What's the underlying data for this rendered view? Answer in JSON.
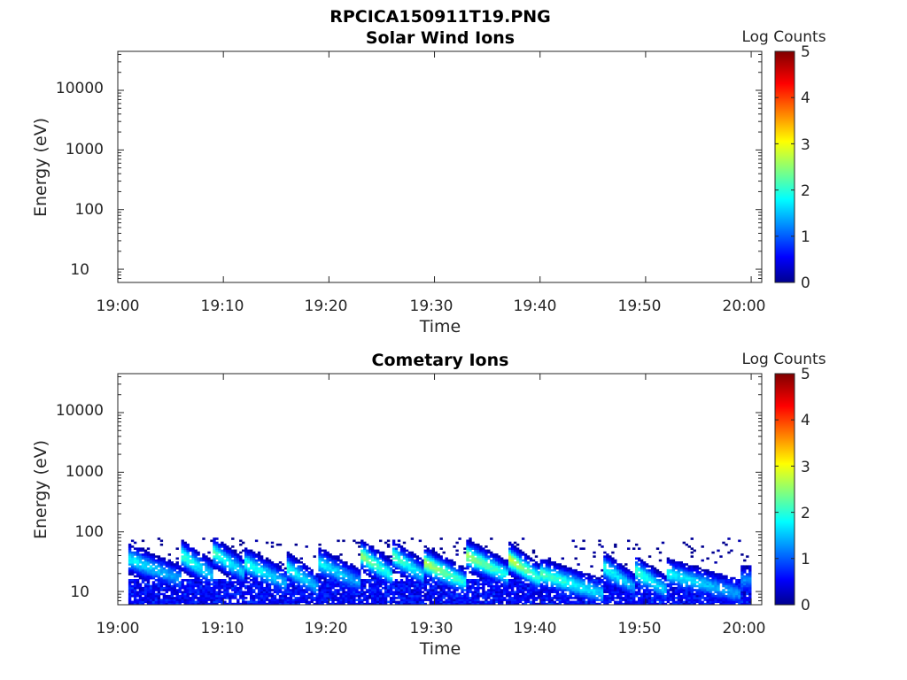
{
  "figure_title": "RPCICA150911T19.PNG",
  "chart_data": [
    {
      "type": "heatmap",
      "title": "Solar Wind Ions",
      "xlabel": "Time",
      "ylabel": "Energy (eV)",
      "x_ticks": [
        "19:00",
        "19:10",
        "19:20",
        "19:30",
        "19:40",
        "19:50",
        "20:00"
      ],
      "xlim": [
        "19:00",
        "20:01"
      ],
      "y_scale": "log",
      "y_ticks": [
        10,
        100,
        1000,
        10000
      ],
      "y_tick_labels": [
        "10",
        "100",
        "1000",
        "10000"
      ],
      "ylim": [
        6,
        45000
      ],
      "grid": false,
      "colorbar": {
        "label": "Log Counts",
        "ticks": [
          "0",
          "1",
          "2",
          "3",
          "4",
          "5"
        ],
        "range": [
          0,
          5
        ],
        "colormap": [
          "#00008f",
          "#0000ff",
          "#00ffff",
          "#ffff00",
          "#ff0000",
          "#800000"
        ]
      },
      "data": []
    },
    {
      "type": "heatmap",
      "title": "Cometary Ions",
      "xlabel": "Time",
      "ylabel": "Energy (eV)",
      "x_ticks": [
        "19:00",
        "19:10",
        "19:20",
        "19:30",
        "19:40",
        "19:50",
        "20:00"
      ],
      "xlim": [
        "19:00",
        "20:01"
      ],
      "y_scale": "log",
      "y_ticks": [
        10,
        100,
        1000,
        10000
      ],
      "y_tick_labels": [
        "10",
        "100",
        "1000",
        "10000"
      ],
      "ylim": [
        6,
        45000
      ],
      "grid": false,
      "colorbar": {
        "label": "Log Counts",
        "ticks": [
          "0",
          "1",
          "2",
          "3",
          "4",
          "5"
        ],
        "range": [
          0,
          5
        ],
        "colormap": [
          "#00008f",
          "#0000ff",
          "#00ffff",
          "#ffff00",
          "#ff0000",
          "#800000"
        ]
      },
      "data_extent": {
        "time_start": "19:01",
        "time_end": "20:00",
        "energy_min_eV": 6,
        "energy_max_eV": 80
      },
      "features": [
        {
          "time": "19:01",
          "peak_energy_eV": 35,
          "peak_log_counts": 1.6
        },
        {
          "time": "19:06",
          "peak_energy_eV": 40,
          "peak_log_counts": 1.9
        },
        {
          "time": "19:09",
          "peak_energy_eV": 45,
          "peak_log_counts": 1.9
        },
        {
          "time": "19:12",
          "peak_energy_eV": 30,
          "peak_log_counts": 1.8
        },
        {
          "time": "19:16",
          "peak_energy_eV": 25,
          "peak_log_counts": 1.7
        },
        {
          "time": "19:19",
          "peak_energy_eV": 30,
          "peak_log_counts": 1.6
        },
        {
          "time": "19:23",
          "peak_energy_eV": 40,
          "peak_log_counts": 2.3
        },
        {
          "time": "19:26",
          "peak_energy_eV": 40,
          "peak_log_counts": 2.0
        },
        {
          "time": "19:29",
          "peak_energy_eV": 30,
          "peak_log_counts": 2.5
        },
        {
          "time": "19:33",
          "peak_energy_eV": 40,
          "peak_log_counts": 2.4
        },
        {
          "time": "19:37",
          "peak_energy_eV": 35,
          "peak_log_counts": 2.6
        },
        {
          "time": "19:40",
          "peak_energy_eV": 20,
          "peak_log_counts": 2.0
        },
        {
          "time": "19:46",
          "peak_energy_eV": 25,
          "peak_log_counts": 1.7
        },
        {
          "time": "19:49",
          "peak_energy_eV": 22,
          "peak_log_counts": 1.9
        },
        {
          "time": "19:52",
          "peak_energy_eV": 20,
          "peak_log_counts": 1.6
        },
        {
          "time": "19:59",
          "peak_energy_eV": 30,
          "peak_log_counts": 1.7
        }
      ]
    }
  ]
}
